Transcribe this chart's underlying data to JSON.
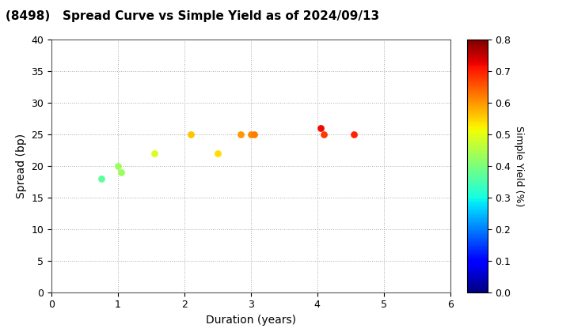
{
  "title": "(8498)   Spread Curve vs Simple Yield as of 2024/09/13",
  "xlabel": "Duration (years)",
  "ylabel": "Spread (bp)",
  "xlim": [
    0,
    6
  ],
  "ylim": [
    0,
    40
  ],
  "yticks": [
    0,
    5,
    10,
    15,
    20,
    25,
    30,
    35,
    40
  ],
  "xticks": [
    0,
    1,
    2,
    3,
    4,
    5,
    6
  ],
  "colorbar_label": "Simple Yield (%)",
  "colorbar_vmin": 0.0,
  "colorbar_vmax": 0.8,
  "colorbar_ticks": [
    0.0,
    0.1,
    0.2,
    0.3,
    0.4,
    0.5,
    0.6,
    0.7,
    0.8
  ],
  "points": [
    {
      "duration": 0.75,
      "spread": 18,
      "simple_yield": 0.37
    },
    {
      "duration": 1.0,
      "spread": 20,
      "simple_yield": 0.43
    },
    {
      "duration": 1.05,
      "spread": 19,
      "simple_yield": 0.43
    },
    {
      "duration": 1.55,
      "spread": 22,
      "simple_yield": 0.49
    },
    {
      "duration": 2.1,
      "spread": 25,
      "simple_yield": 0.56
    },
    {
      "duration": 2.5,
      "spread": 22,
      "simple_yield": 0.54
    },
    {
      "duration": 2.85,
      "spread": 25,
      "simple_yield": 0.6
    },
    {
      "duration": 3.0,
      "spread": 25,
      "simple_yield": 0.61
    },
    {
      "duration": 3.05,
      "spread": 25,
      "simple_yield": 0.62
    },
    {
      "duration": 4.05,
      "spread": 26,
      "simple_yield": 0.72
    },
    {
      "duration": 4.1,
      "spread": 25,
      "simple_yield": 0.68
    },
    {
      "duration": 4.55,
      "spread": 25,
      "simple_yield": 0.7
    }
  ],
  "marker_size": 40,
  "background_color": "#ffffff",
  "grid_color": "#aaaaaa",
  "title_fontsize": 11,
  "axis_fontsize": 10,
  "cbar_fontsize": 9
}
